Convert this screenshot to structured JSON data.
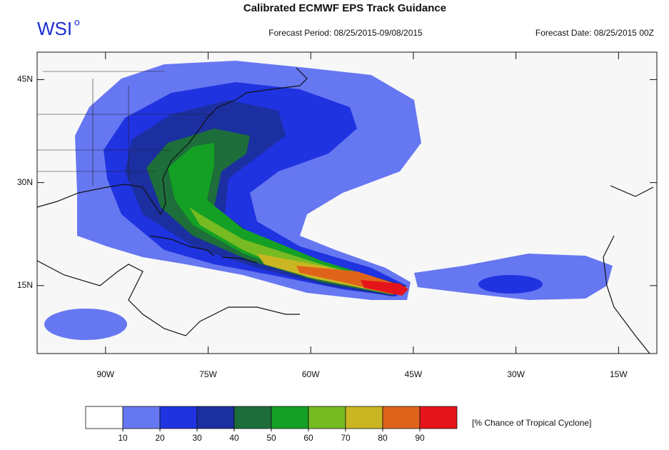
{
  "header": {
    "title": "Calibrated ECMWF EPS Track Guidance",
    "logo": "WSI",
    "logo_mark": "o",
    "forecast_period": "Forecast Period: 08/25/2015-09/08/2015",
    "forecast_date": "Forecast Date: 08/25/2015 00Z"
  },
  "map": {
    "lonlim": [
      -100,
      -9.4
    ],
    "latlim": [
      5.1,
      49
    ],
    "xticks": [
      {
        "value": -90,
        "label": "90W"
      },
      {
        "value": -75,
        "label": "75W"
      },
      {
        "value": -60,
        "label": "60W"
      },
      {
        "value": -45,
        "label": "45W"
      },
      {
        "value": -30,
        "label": "30W"
      },
      {
        "value": -15,
        "label": "15W"
      }
    ],
    "yticks": [
      {
        "value": 15,
        "label": "15N"
      },
      {
        "value": 30,
        "label": "30N"
      },
      {
        "value": 45,
        "label": "45N"
      }
    ]
  },
  "legend": {
    "levels": [
      10,
      20,
      30,
      40,
      50,
      60,
      70,
      80,
      90
    ],
    "colors": [
      "#ffffff",
      "#6677f2",
      "#1f33e0",
      "#1b2fa0",
      "#1d6e3a",
      "#14a024",
      "#77bb22",
      "#c9b622",
      "#e0631a",
      "#e4141a"
    ],
    "caption": "[% Chance of Tropical Cyclone]"
  }
}
